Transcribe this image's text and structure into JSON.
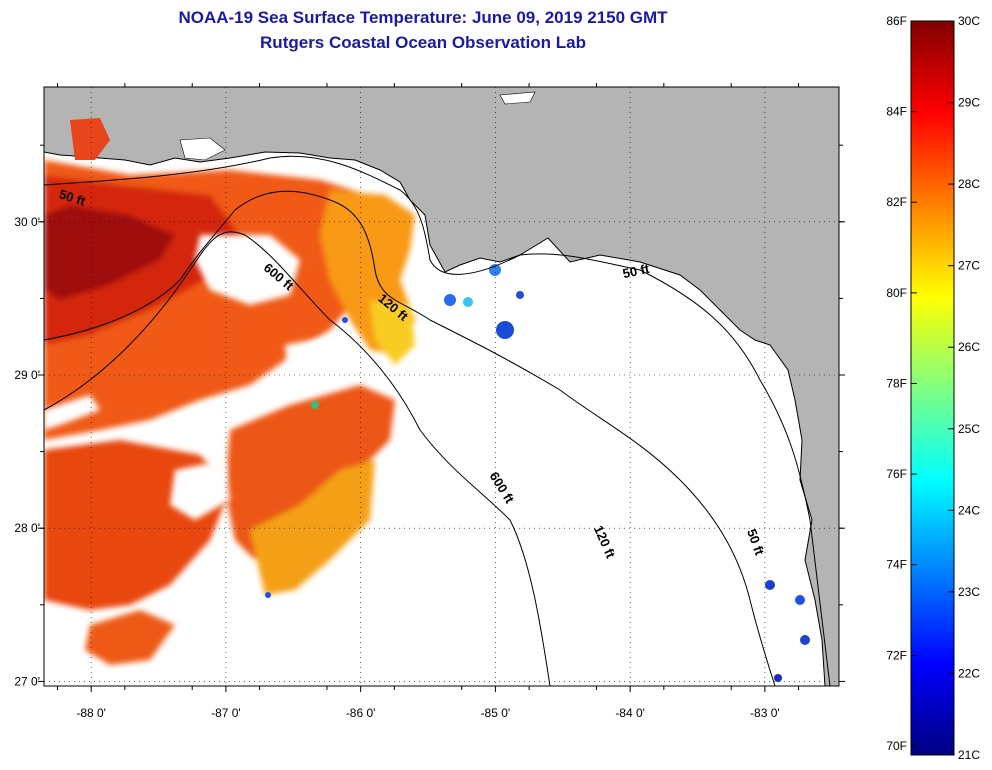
{
  "header": {
    "title": "NOAA-19 Sea Surface Temperature:  June 09, 2019 2150 GMT",
    "subtitle": "Rutgers Coastal Ocean Observation Lab"
  },
  "map": {
    "lon_range": [
      -88.35,
      -82.45
    ],
    "lat_range": [
      26.97,
      30.88
    ],
    "lon_ticks": [
      -88,
      -87,
      -86,
      -85,
      -84,
      -83
    ],
    "lon_tick_labels": [
      "-88 0'",
      "-87 0'",
      "-86 0'",
      "-85 0'",
      "-84 0'",
      "-83 0'"
    ],
    "lat_ticks": [
      27,
      28,
      29,
      30
    ],
    "lat_tick_labels": [
      "27 0'",
      "28 0'",
      "29 0'",
      "30 0'"
    ],
    "grid": "dotted",
    "colors": {
      "land": "#b4b4b4",
      "no_data": "#ffffff",
      "coast": "#000000"
    },
    "contour_labels": [
      {
        "id": "50-west",
        "text": "50 ft",
        "lon": -88.15,
        "lat": 30.13,
        "angle": 18
      },
      {
        "id": "600-upper",
        "text": "600 ft",
        "lon": -86.63,
        "lat": 29.62,
        "angle": 40
      },
      {
        "id": "120-center",
        "text": "120 ft",
        "lon": -85.78,
        "lat": 29.42,
        "angle": 40
      },
      {
        "id": "50-east",
        "text": "50 ft",
        "lon": -83.95,
        "lat": 29.65,
        "angle": -12
      },
      {
        "id": "600-lower",
        "text": "600 ft",
        "lon": -84.98,
        "lat": 28.25,
        "angle": 58
      },
      {
        "id": "120-lower",
        "text": "120 ft",
        "lon": -84.22,
        "lat": 27.9,
        "angle": 66
      },
      {
        "id": "50-southeast",
        "text": "50 ft",
        "lon": -83.1,
        "lat": 27.9,
        "angle": 70
      }
    ]
  },
  "colorbar": {
    "min_c": 21,
    "max_c": 30,
    "celsius_labels": [
      "30C",
      "29C",
      "28C",
      "27C",
      "26C",
      "25C",
      "24C",
      "23C",
      "22C",
      "21C"
    ],
    "fahrenheit_labels": [
      "86F",
      "84F",
      "82F",
      "80F",
      "78F",
      "76F",
      "74F",
      "72F",
      "70F"
    ],
    "colors": [
      "#800000",
      "#ff0000",
      "#ff8000",
      "#ffff00",
      "#80ff80",
      "#00ffff",
      "#0080ff",
      "#0000ff",
      "#000080"
    ]
  }
}
